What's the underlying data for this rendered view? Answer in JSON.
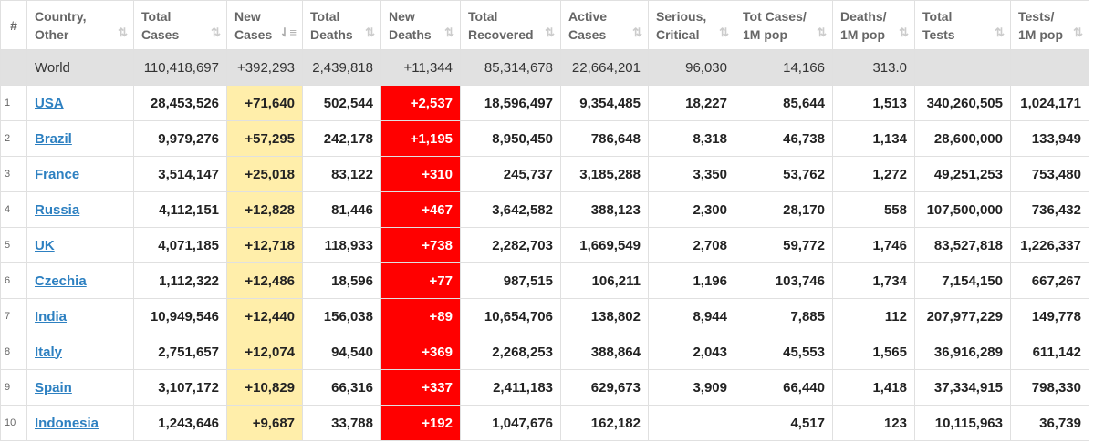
{
  "headers": [
    {
      "label": "#"
    },
    {
      "label": "Country,\nOther"
    },
    {
      "label": "Total\nCases"
    },
    {
      "label": "New\nCases"
    },
    {
      "label": "Total\nDeaths"
    },
    {
      "label": "New\nDeaths"
    },
    {
      "label": "Total\nRecovered"
    },
    {
      "label": "Active\nCases"
    },
    {
      "label": "Serious,\nCritical"
    },
    {
      "label": "Tot Cases/\n1M pop"
    },
    {
      "label": "Deaths/\n1M pop"
    },
    {
      "label": "Total\nTests"
    },
    {
      "label": "Tests/\n1M pop"
    }
  ],
  "sort_icon": "⇅",
  "active_sort_icon": "⇃≡",
  "world": [
    "",
    "World",
    "110,418,697",
    "+392,293",
    "2,439,818",
    "+11,344",
    "85,314,678",
    "22,664,201",
    "96,030",
    "14,166",
    "313.0",
    "",
    ""
  ],
  "rows": [
    [
      "1",
      "USA",
      "28,453,526",
      "+71,640",
      "502,544",
      "+2,537",
      "18,596,497",
      "9,354,485",
      "18,227",
      "85,644",
      "1,513",
      "340,260,505",
      "1,024,171"
    ],
    [
      "2",
      "Brazil",
      "9,979,276",
      "+57,295",
      "242,178",
      "+1,195",
      "8,950,450",
      "786,648",
      "8,318",
      "46,738",
      "1,134",
      "28,600,000",
      "133,949"
    ],
    [
      "3",
      "France",
      "3,514,147",
      "+25,018",
      "83,122",
      "+310",
      "245,737",
      "3,185,288",
      "3,350",
      "53,762",
      "1,272",
      "49,251,253",
      "753,480"
    ],
    [
      "4",
      "Russia",
      "4,112,151",
      "+12,828",
      "81,446",
      "+467",
      "3,642,582",
      "388,123",
      "2,300",
      "28,170",
      "558",
      "107,500,000",
      "736,432"
    ],
    [
      "5",
      "UK",
      "4,071,185",
      "+12,718",
      "118,933",
      "+738",
      "2,282,703",
      "1,669,549",
      "2,708",
      "59,772",
      "1,746",
      "83,527,818",
      "1,226,337"
    ],
    [
      "6",
      "Czechia",
      "1,112,322",
      "+12,486",
      "18,596",
      "+77",
      "987,515",
      "106,211",
      "1,196",
      "103,746",
      "1,734",
      "7,154,150",
      "667,267"
    ],
    [
      "7",
      "India",
      "10,949,546",
      "+12,440",
      "156,038",
      "+89",
      "10,654,706",
      "138,802",
      "8,944",
      "7,885",
      "112",
      "207,977,229",
      "149,778"
    ],
    [
      "8",
      "Italy",
      "2,751,657",
      "+12,074",
      "94,540",
      "+369",
      "2,268,253",
      "388,864",
      "2,043",
      "45,553",
      "1,565",
      "36,916,289",
      "611,142"
    ],
    [
      "9",
      "Spain",
      "3,107,172",
      "+10,829",
      "66,316",
      "+337",
      "2,411,183",
      "629,673",
      "3,909",
      "66,440",
      "1,418",
      "37,334,915",
      "798,330"
    ],
    [
      "10",
      "Indonesia",
      "1,243,646",
      "+9,687",
      "33,788",
      "+192",
      "1,047,676",
      "162,182",
      "",
      "4,517",
      "123",
      "10,115,963",
      "36,739"
    ]
  ]
}
